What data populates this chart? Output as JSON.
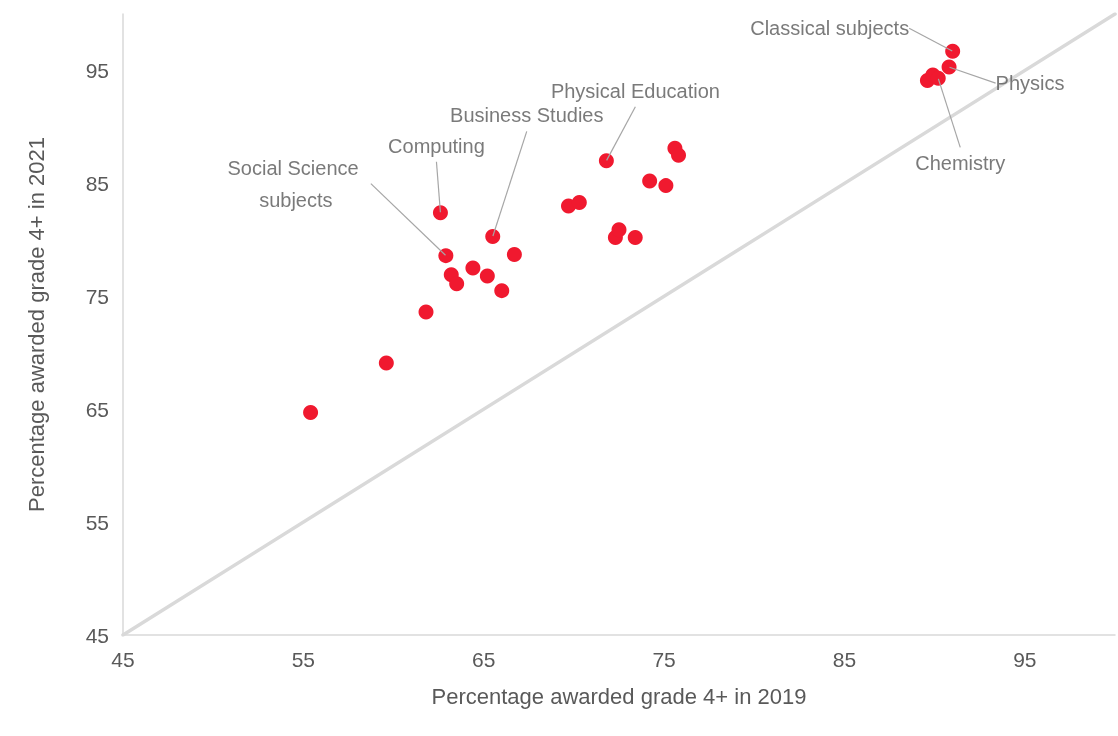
{
  "chart_data": {
    "type": "scatter",
    "xlabel": "Percentage awarded grade 4+ in 2019",
    "ylabel": "Percentage awarded grade 4+ in 2021",
    "xlim": [
      45,
      100
    ],
    "xticks": [
      45,
      55,
      65,
      75,
      85,
      95
    ],
    "ylim": [
      45,
      100
    ],
    "yticks": [
      45,
      55,
      65,
      75,
      85,
      95
    ],
    "grid": false,
    "series": [
      {
        "type": "line",
        "color": "#d9d9d9",
        "marker": "none",
        "x": [
          45,
          100
        ],
        "values": [
          45,
          100
        ]
      },
      {
        "color": "#f0192f",
        "marker": "circle",
        "x": [
          55.4,
          59.6,
          61.8,
          62.6,
          62.9,
          63.2,
          63.5,
          64.4,
          65.2,
          65.5,
          66.0,
          66.7,
          69.7,
          70.3,
          71.8,
          72.3,
          72.5,
          73.4,
          74.2,
          75.1,
          75.6,
          75.8,
          89.6,
          89.9,
          90.2,
          90.8,
          91.0
        ],
        "values": [
          64.7,
          69.1,
          73.6,
          82.4,
          78.6,
          76.9,
          76.1,
          77.5,
          76.8,
          80.3,
          75.5,
          78.7,
          83.0,
          83.3,
          87.0,
          80.2,
          80.9,
          80.2,
          85.2,
          84.8,
          88.1,
          87.5,
          94.1,
          94.6,
          94.3,
          95.3,
          96.7
        ]
      }
    ],
    "annotations": [
      {
        "text": "Classical subjects",
        "x": 91.0,
        "y": 96.7
      },
      {
        "text": "Physics",
        "x": 90.8,
        "y": 95.3
      },
      {
        "text": "Chemistry",
        "x": 90.2,
        "y": 94.3
      },
      {
        "text": "Physical Education",
        "x": 71.8,
        "y": 87.0
      },
      {
        "text": "Business Studies",
        "x": 65.5,
        "y": 80.3
      },
      {
        "text": "Computing",
        "x": 62.6,
        "y": 82.4
      },
      {
        "text": "Social Science subjects",
        "x": 62.9,
        "y": 78.6
      }
    ]
  }
}
